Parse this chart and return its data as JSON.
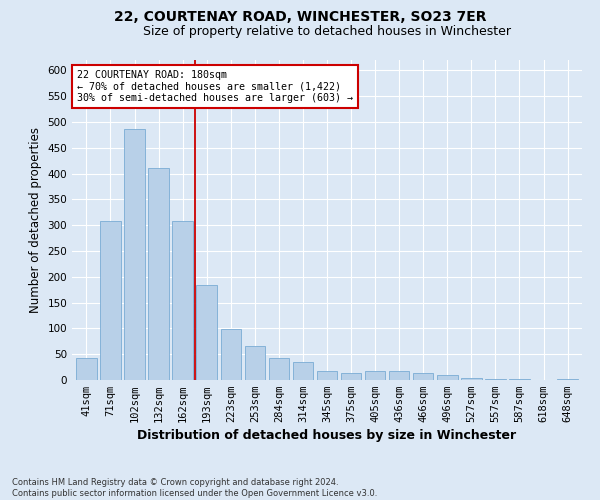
{
  "title": "22, COURTENAY ROAD, WINCHESTER, SO23 7ER",
  "subtitle": "Size of property relative to detached houses in Winchester",
  "xlabel": "Distribution of detached houses by size in Winchester",
  "ylabel": "Number of detached properties",
  "categories": [
    "41sqm",
    "71sqm",
    "102sqm",
    "132sqm",
    "162sqm",
    "193sqm",
    "223sqm",
    "253sqm",
    "284sqm",
    "314sqm",
    "345sqm",
    "375sqm",
    "405sqm",
    "436sqm",
    "466sqm",
    "496sqm",
    "527sqm",
    "557sqm",
    "587sqm",
    "618sqm",
    "648sqm"
  ],
  "values": [
    42,
    308,
    487,
    410,
    308,
    185,
    98,
    65,
    42,
    35,
    18,
    14,
    18,
    18,
    14,
    10,
    4,
    1,
    1,
    0,
    1
  ],
  "bar_color": "#b8d0e8",
  "bar_edge_color": "#7aacd4",
  "vline_color": "#cc0000",
  "annotation_text": "22 COURTENAY ROAD: 180sqm\n← 70% of detached houses are smaller (1,422)\n30% of semi-detached houses are larger (603) →",
  "annotation_box_color": "#ffffff",
  "annotation_box_edge_color": "#cc0000",
  "footnote": "Contains HM Land Registry data © Crown copyright and database right 2024.\nContains public sector information licensed under the Open Government Licence v3.0.",
  "ylim": [
    0,
    620
  ],
  "fig_bg_color": "#dce8f5",
  "plot_bg_color": "#dce8f5",
  "title_fontsize": 10,
  "subtitle_fontsize": 9,
  "axis_label_fontsize": 8.5,
  "tick_fontsize": 7.5
}
